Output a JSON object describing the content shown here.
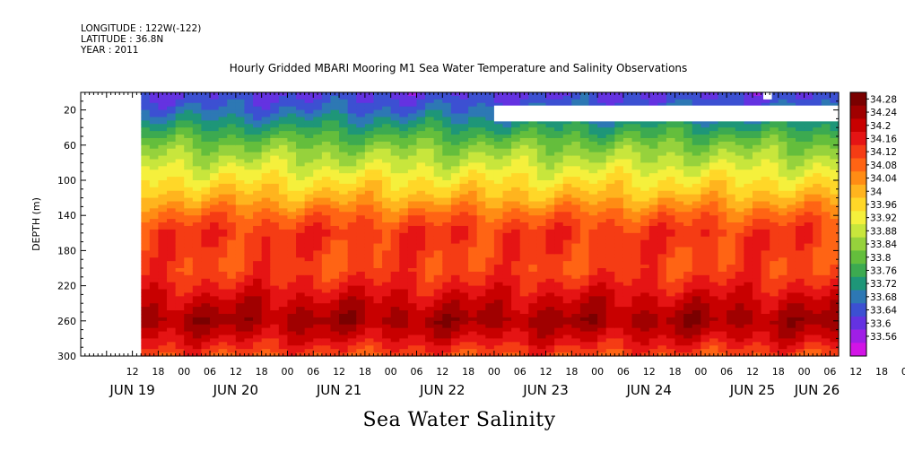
{
  "header": {
    "longitude": "LONGITUDE : 122W(-122)",
    "latitude": "LATITUDE : 36.8N",
    "year": "YEAR : 2011"
  },
  "chart_data": {
    "type": "heatmap",
    "title": "Hourly Gridded MBARI Mooring M1 Sea Water Temperature and Salinity Observations",
    "bottom_title": "Sea Water Salinity",
    "ylabel": "DEPTH (m)",
    "xlabel": "",
    "y_reversed": true,
    "ylim": [
      0,
      300
    ],
    "y_ticks": [
      20,
      60,
      100,
      140,
      180,
      220,
      260,
      300
    ],
    "x_hour_ticks": [
      "12",
      "18",
      "00",
      "06",
      "12",
      "18",
      "00",
      "06",
      "12",
      "18",
      "00",
      "06",
      "12",
      "18",
      "00",
      "06",
      "12",
      "18",
      "00",
      "06",
      "12",
      "18",
      "00",
      "06",
      "12",
      "18",
      "00",
      "06",
      "12",
      "18",
      "00",
      "06"
    ],
    "x_day_labels": [
      "JUN 19",
      "JUN 20",
      "JUN 21",
      "JUN 22",
      "JUN 23",
      "JUN 24",
      "JUN 25",
      "JUN 26"
    ],
    "x_range_hours_from_jun19_00": [
      0,
      176
    ],
    "data_start_hour": 14,
    "colorbar": {
      "levels": [
        "34.28",
        "34.24",
        "34.2",
        "34.16",
        "34.12",
        "34.08",
        "34.04",
        "34",
        "33.96",
        "33.92",
        "33.88",
        "33.84",
        "33.8",
        "33.76",
        "33.72",
        "33.68",
        "33.64",
        "33.6",
        "33.56"
      ],
      "colors": [
        "#7a0000",
        "#a00000",
        "#c80000",
        "#e51414",
        "#f53c14",
        "#ff6414",
        "#ff8c14",
        "#ffb41e",
        "#ffd728",
        "#f5f03c",
        "#c8e63c",
        "#96d23c",
        "#64be3c",
        "#3caa50",
        "#1e9678",
        "#2d78b4",
        "#3c50d2",
        "#6432e1",
        "#a01ee6",
        "#d214e6"
      ]
    },
    "depth_profile": [
      {
        "depth": 5,
        "salinity": 33.64
      },
      {
        "depth": 20,
        "salinity": 33.68
      },
      {
        "depth": 40,
        "salinity": 33.76
      },
      {
        "depth": 60,
        "salinity": 33.84
      },
      {
        "depth": 80,
        "salinity": 33.9
      },
      {
        "depth": 100,
        "salinity": 33.96
      },
      {
        "depth": 120,
        "salinity": 34.02
      },
      {
        "depth": 140,
        "salinity": 34.1
      },
      {
        "depth": 160,
        "salinity": 34.15
      },
      {
        "depth": 180,
        "salinity": 34.14
      },
      {
        "depth": 200,
        "salinity": 34.13
      },
      {
        "depth": 220,
        "salinity": 34.17
      },
      {
        "depth": 240,
        "salinity": 34.22
      },
      {
        "depth": 260,
        "salinity": 34.26
      },
      {
        "depth": 280,
        "salinity": 34.2
      },
      {
        "depth": 300,
        "salinity": 34.12
      }
    ],
    "missing_regions": [
      {
        "x_hours": [
          0,
          14
        ],
        "depth": [
          0,
          300
        ]
      },
      {
        "x_hours": [
          96,
          176
        ],
        "depth": [
          15,
          33
        ]
      },
      {
        "x_hours": [
          158.5,
          160.5
        ],
        "depth": [
          0,
          8
        ]
      }
    ]
  }
}
